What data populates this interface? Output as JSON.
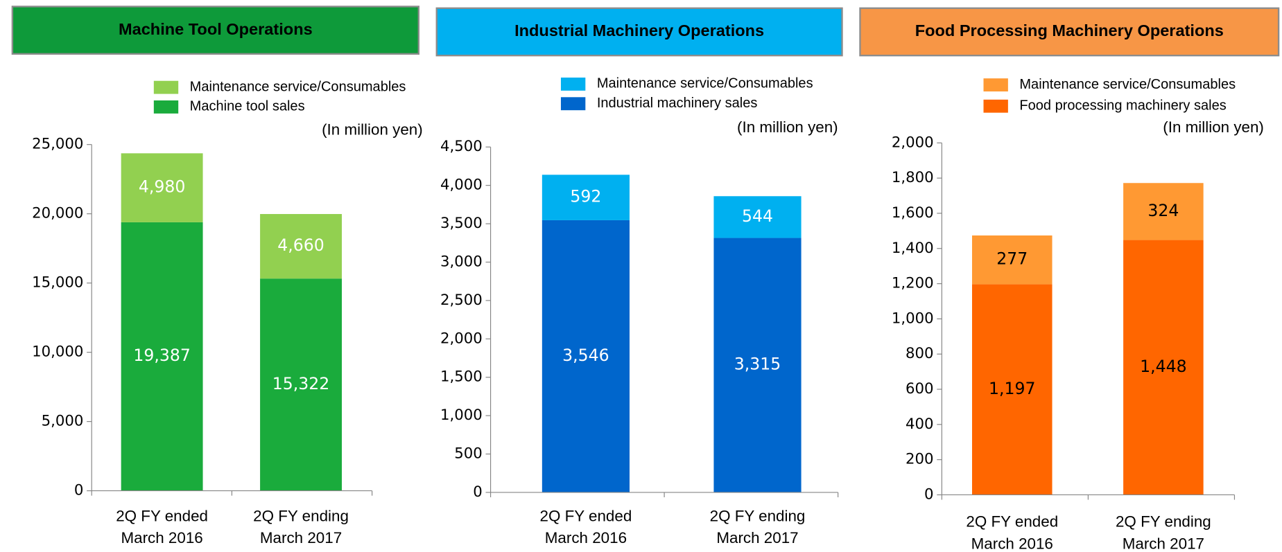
{
  "chart_data": [
    {
      "type": "bar",
      "stacked": true,
      "title": "Machine Tool Operations",
      "header_color": "#0e9a3a",
      "unit_label": "(In million yen)",
      "categories": [
        "2Q FY ended\nMarch 2016",
        "2Q FY ending\nMarch 2017"
      ],
      "series": [
        {
          "name": "Machine tool sales",
          "color": "#1aab3c",
          "values": [
            19387,
            15322
          ],
          "value_labels": [
            "19,387",
            "15,322"
          ]
        },
        {
          "name": "Maintenance service/Consumables",
          "color": "#92d050",
          "values": [
            4980,
            4660
          ],
          "value_labels": [
            "4,980",
            "4,660"
          ]
        }
      ],
      "label_color": "#ffffff",
      "ylim": [
        0,
        25000
      ],
      "yticks": [
        0,
        {
          "value": 5000,
          "label": "5,000"
        },
        {
          "value": 10000,
          "label": "10,000"
        },
        {
          "value": 15000,
          "label": "15,000"
        },
        {
          "value": 20000,
          "label": "20,000"
        },
        {
          "value": 25000,
          "label": "25,000"
        }
      ]
    },
    {
      "type": "bar",
      "stacked": true,
      "title": "Industrial Machinery Operations",
      "header_color": "#00b0f0",
      "unit_label": "(In million yen)",
      "categories": [
        "2Q FY ended\nMarch 2016",
        "2Q FY ending\nMarch 2017"
      ],
      "series": [
        {
          "name": "Industrial machinery sales",
          "color": "#0066cc",
          "values": [
            3546,
            3315
          ],
          "value_labels": [
            "3,546",
            "3,315"
          ]
        },
        {
          "name": "Maintenance service/Consumables",
          "color": "#00b0f0",
          "values": [
            592,
            544
          ]
        }
      ],
      "label_color": "#ffffff",
      "ylim": [
        0,
        4500
      ],
      "yticks": [
        0,
        500,
        {
          "value": 1000,
          "label": "1,000"
        },
        {
          "value": 1500,
          "label": "1,500"
        },
        {
          "value": 2000,
          "label": "2,000"
        },
        {
          "value": 2500,
          "label": "2,500"
        },
        {
          "value": 3000,
          "label": "3,000"
        },
        {
          "value": 3500,
          "label": "3,500"
        },
        {
          "value": 4000,
          "label": "4,000"
        },
        {
          "value": 4500,
          "label": "4,500"
        }
      ]
    },
    {
      "type": "bar",
      "stacked": true,
      "title": "Food Processing Machinery Operations",
      "header_color": "#f79646",
      "unit_label": "(In million yen)",
      "categories": [
        "2Q FY ended\nMarch 2016",
        "2Q FY ending\nMarch 2017"
      ],
      "series": [
        {
          "name": "Food processing machinery sales",
          "color": "#ff6600",
          "values": [
            1197,
            1448
          ],
          "value_labels": [
            "1,197",
            "1,448"
          ]
        },
        {
          "name": "Maintenance service/Consumables",
          "color": "#ff9933",
          "values": [
            277,
            324
          ]
        }
      ],
      "label_color": "#000000",
      "ylim": [
        0,
        2000
      ],
      "yticks": [
        0,
        200,
        400,
        600,
        800,
        {
          "value": 1000,
          "label": "1,000"
        },
        {
          "value": 1200,
          "label": "1,200"
        },
        {
          "value": 1400,
          "label": "1,400"
        },
        {
          "value": 1600,
          "label": "1,600"
        },
        {
          "value": 1800,
          "label": "1,800"
        },
        {
          "value": 2000,
          "label": "2,000"
        }
      ]
    }
  ]
}
